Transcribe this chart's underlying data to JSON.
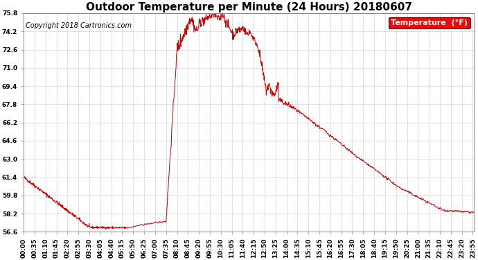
{
  "title": "Outdoor Temperature per Minute (24 Hours) 20180607",
  "copyright": "Copyright 2018 Cartronics.com",
  "legend_label": "Temperature  (°F)",
  "line_color": "#cc0000",
  "background_color": "#ffffff",
  "grid_color": "#aaaaaa",
  "yticks": [
    56.6,
    58.2,
    59.8,
    61.4,
    63.0,
    64.6,
    66.2,
    67.8,
    69.4,
    71.0,
    72.6,
    74.2,
    75.8
  ],
  "ymin": 56.6,
  "ymax": 75.8,
  "title_fontsize": 11,
  "copyright_fontsize": 7,
  "legend_fontsize": 8,
  "tick_fontsize": 6.5,
  "xtick_interval_minutes": 35,
  "total_minutes": 1440
}
